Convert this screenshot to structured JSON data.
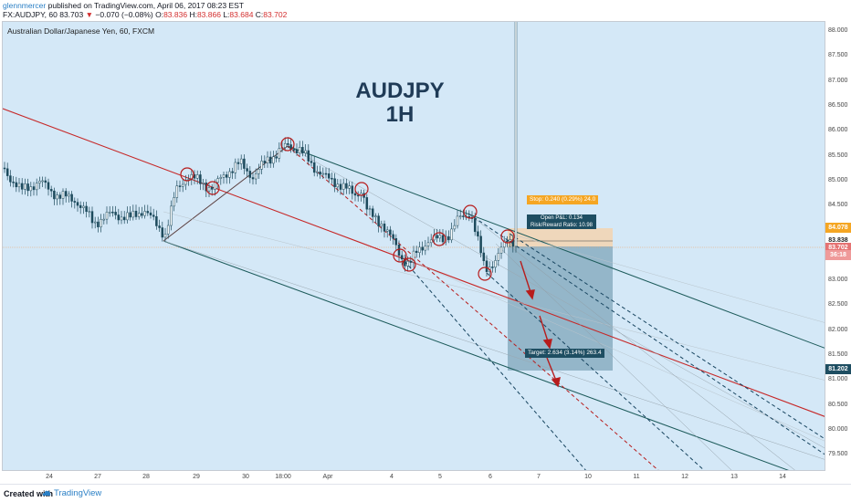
{
  "header": {
    "author": "glennmercer",
    "published_text": "published on TradingView.com, April 06, 2017 08:23 EST",
    "symbol_interval": "FX:AUDJPY, 60",
    "last_price": "83.703",
    "change_arrow": "▼",
    "change": "−0.070 (−0.08%)",
    "o_label": "O:",
    "o_value": "83.836",
    "h_label": "H:",
    "h_value": "83.866",
    "l_label": "L:",
    "l_value": "83.684",
    "c_label": "C:",
    "c_value": "83.702"
  },
  "chart": {
    "symbol_label": "Australian Dollar/Japanese Yen, 60, FXCM",
    "title_line1": "AUDJPY",
    "title_line2": "1H",
    "stop_label": "Stop: 0.240 (0.29%) 24.0",
    "open_pl": "Open P&L: 0.134",
    "risk_reward": "Risk/Reward Ratio: 10.98",
    "target_label": "Target: 2.634 (3.14%) 263.4",
    "colors": {
      "background": "#d4e8f7",
      "channel": "#1d5b5b",
      "median": "#c62828",
      "dashed_dark": "#17445f",
      "dashed_red": "#b71c1c",
      "circle": "#b71c1c",
      "target_zone": "#7fa6ba",
      "stop_zone": "#f3d3b0",
      "candle_up": "#1d4a5c",
      "candle_down": "#1d4a5c"
    }
  },
  "price_axis": {
    "ticks": [
      "88.000",
      "87.500",
      "87.000",
      "86.500",
      "86.000",
      "85.500",
      "85.000",
      "84.500",
      "84.000",
      "83.500",
      "83.000",
      "82.500",
      "82.000",
      "81.500",
      "81.000",
      "80.500",
      "80.000",
      "79.500"
    ],
    "badges": [
      {
        "text": "84.078",
        "bg": "#f5a623",
        "color": "#ffffff"
      },
      {
        "text": "83.838",
        "bg": "#ffffff",
        "color": "#222222"
      },
      {
        "text": "83.702",
        "bg": "#e57373",
        "color": "#ffffff"
      },
      {
        "text": "36:18",
        "bg": "#ef9a9a",
        "color": "#ffffff"
      },
      {
        "text": "81.202",
        "bg": "#1e4e62",
        "color": "#ffffff"
      }
    ]
  },
  "time_axis": {
    "ticks": [
      "24",
      "27",
      "28",
      "29",
      "30",
      "18:00",
      "Apr",
      "4",
      "5",
      "6",
      "7",
      "10",
      "11",
      "12",
      "13",
      "14"
    ]
  },
  "footer": {
    "created_with": "Created with",
    "brand": "TradingView",
    "logo_icon": "tradingview-cloud-icon"
  }
}
